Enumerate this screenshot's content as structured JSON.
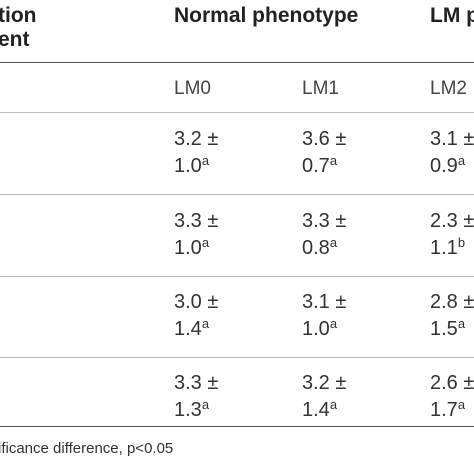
{
  "table": {
    "header": {
      "first_col_line1": "tion",
      "first_col_line2": "ent",
      "group_normal": "Normal phenotype",
      "group_lm": "LM p"
    },
    "subheader": [
      "LM0",
      "LM1",
      "LM2"
    ],
    "rows": [
      {
        "lm0": [
          "3.2 ±",
          "1.0",
          "a"
        ],
        "lm1": [
          "3.6 ±",
          "0.7",
          "a"
        ],
        "lm2": [
          "3.1 ±",
          "0.9",
          "a"
        ]
      },
      {
        "lm0": [
          "3.3 ±",
          "1.0",
          "a"
        ],
        "lm1": [
          "3.3 ±",
          "0.8",
          "a"
        ],
        "lm2": [
          "2.3 ±",
          "1.1",
          "b"
        ]
      },
      {
        "lm0": [
          "3.0 ±",
          "1.4",
          "a"
        ],
        "lm1": [
          "3.1 ±",
          "1.0",
          "a"
        ],
        "lm2": [
          "2.8 ±",
          "1.5",
          "a"
        ]
      },
      {
        "lm0": [
          "3.3 ±",
          "1.3",
          "a"
        ],
        "lm1": [
          "3.2 ±",
          "1.4",
          "a"
        ],
        "lm2": [
          "2.6 ±",
          "1.7",
          "a"
        ]
      }
    ],
    "footnote": "ificance difference, p<0.05"
  }
}
